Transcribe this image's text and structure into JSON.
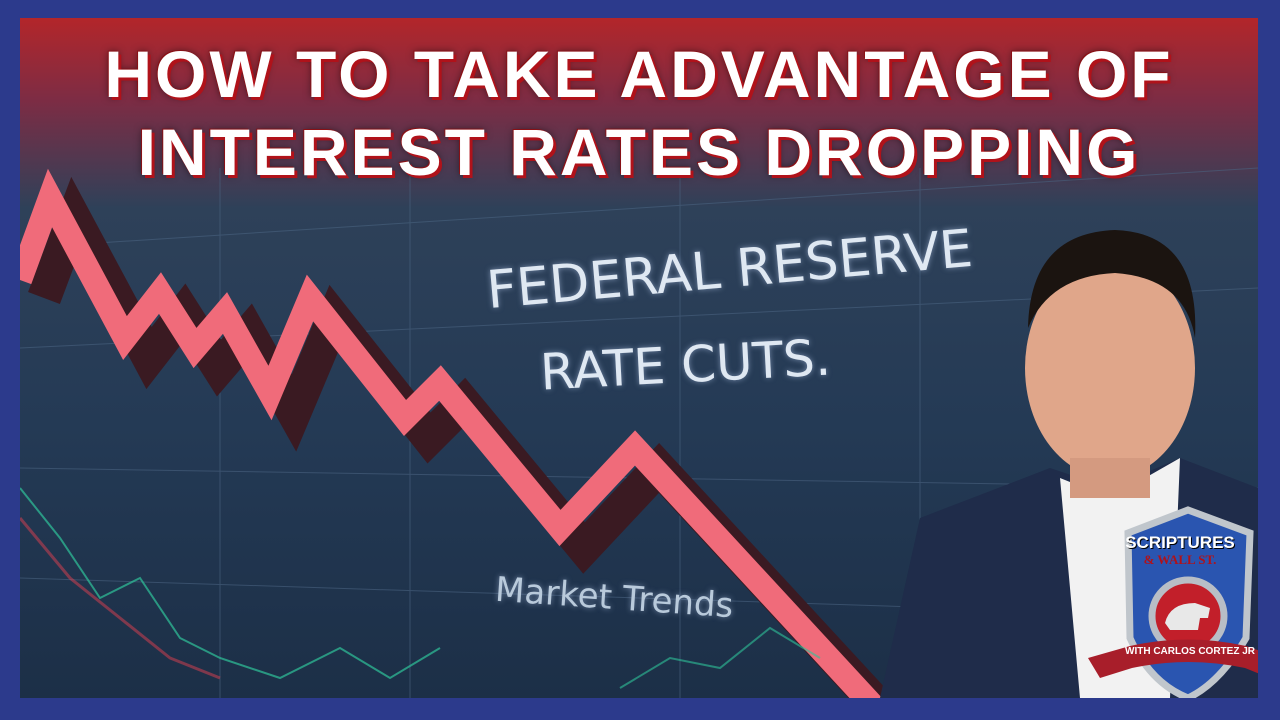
{
  "headline": {
    "line1": "HOW TO TAKE ADVANTAGE OF",
    "line2": "INTEREST RATES DROPPING"
  },
  "screen": {
    "line1": "FEDERAL RESERVE",
    "line2": "RATE CUTS.",
    "label": "Market Trends"
  },
  "logo": {
    "title": "SCRIPTURES",
    "subtitle": "& WALL ST.",
    "ribbon": "WITH CARLOS CORTEZ JR"
  },
  "colors": {
    "border": "#2c3a8c",
    "header_red": "#b3262a",
    "trend_line": "#f06b7a",
    "shield_blue": "#2a55b0",
    "ribbon_red": "#a81e2a"
  }
}
